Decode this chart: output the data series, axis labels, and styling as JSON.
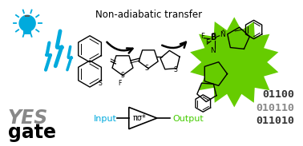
{
  "title": "Non-adiabatic transfer",
  "title_fontsize": 8.5,
  "yes_text": "YES",
  "gate_text": "gate",
  "yes_color": "#888888",
  "gate_color": "#000000",
  "input_text": "Input",
  "input_color": "#00aadd",
  "output_text": "Output",
  "output_color": "#44cc00",
  "gate_label": "πσ*",
  "binary_row1": "01100",
  "binary_row2": "010110",
  "binary_row3": "011010",
  "binary_col1_color": "#bbbbbb",
  "binary_col2_color": "#888888",
  "binary_col3_color": "#333333",
  "green_color": "#66cc00",
  "lightning_color": "#00aadd",
  "bg_color": "#ffffff",
  "mol_color": "#000000",
  "bodipy_color": "#000000"
}
